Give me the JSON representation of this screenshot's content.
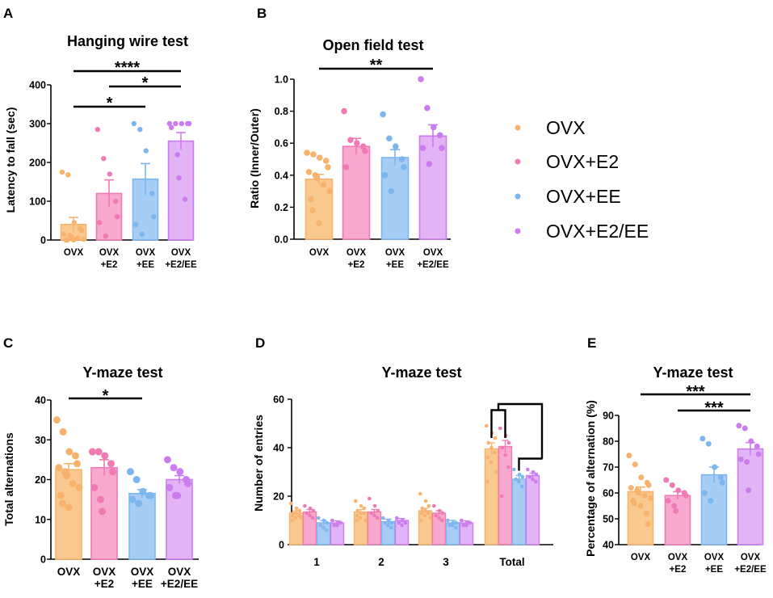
{
  "colors": {
    "OVX": "#F9C990",
    "OVX+E2": "#F7A9CF",
    "OVX+EE": "#A8CDF4",
    "OVX+E2/EE": "#E2B3F5",
    "OVX_dot": "#F7B36E",
    "OVX+E2_dot": "#F07BB4",
    "OVX+EE_dot": "#7DB6EE",
    "OVX+E2/EE_dot": "#CB7CEE"
  },
  "legend": [
    {
      "label": "OVX",
      "group": "OVX"
    },
    {
      "label": "OVX+E2",
      "group": "OVX+E2"
    },
    {
      "label": "OVX+EE",
      "group": "OVX+EE"
    },
    {
      "label": "OVX+E2/EE",
      "group": "OVX+E2/EE"
    }
  ],
  "chart_data": [
    {
      "panel": "A",
      "type": "bar",
      "title": "Hanging wire test",
      "ylabel": "Latency to fall (sec)",
      "ylim": [
        0,
        400
      ],
      "yticks": [
        0,
        100,
        200,
        300,
        400
      ],
      "categories": [
        [
          "OVX"
        ],
        [
          "OVX",
          "+E2"
        ],
        [
          "OVX",
          "+EE"
        ],
        [
          "OVX",
          "+E2/EE"
        ]
      ],
      "groups": [
        "OVX",
        "OVX+E2",
        "OVX+EE",
        "OVX+E2/EE"
      ],
      "values": [
        40,
        120,
        157,
        255
      ],
      "sem": [
        18,
        35,
        40,
        22
      ],
      "points": [
        [
          175,
          168,
          45,
          30,
          25,
          15,
          12,
          8,
          5,
          2,
          0,
          0,
          0
        ],
        [
          285,
          210,
          170,
          100,
          60,
          45,
          10
        ],
        [
          300,
          285,
          230,
          120,
          60,
          40,
          15
        ],
        [
          300,
          300,
          300,
          300,
          300,
          290,
          220,
          160,
          105
        ]
      ],
      "significance": [
        {
          "from": 0,
          "to": 3,
          "label": "****"
        },
        {
          "from": 1,
          "to": 3,
          "label": "*"
        },
        {
          "from": 0,
          "to": 2,
          "label": "*"
        }
      ]
    },
    {
      "panel": "B",
      "type": "bar",
      "title": "Open field test",
      "ylabel": "Ratio (Inner/Outer)",
      "ylim": [
        0,
        1.0
      ],
      "yticks": [
        "0.0",
        "0.2",
        "0.4",
        "0.6",
        "0.8",
        "1.0"
      ],
      "categories": [
        [
          "OVX"
        ],
        [
          "OVX",
          "+E2"
        ],
        [
          "OVX",
          "+EE"
        ],
        [
          "OVX",
          "+E2/EE"
        ]
      ],
      "groups": [
        "OVX",
        "OVX+E2",
        "OVX+EE",
        "OVX+E2/EE"
      ],
      "values": [
        0.375,
        0.58,
        0.51,
        0.645
      ],
      "sem": [
        0.03,
        0.05,
        0.05,
        0.07
      ],
      "points": [
        [
          0.54,
          0.53,
          0.51,
          0.49,
          0.45,
          0.42,
          0.4,
          0.38,
          0.34,
          0.3,
          0.25,
          0.18,
          0.1
        ],
        [
          0.8,
          0.62,
          0.6,
          0.58,
          0.55,
          0.45
        ],
        [
          0.78,
          0.63,
          0.58,
          0.5,
          0.45,
          0.4,
          0.3
        ],
        [
          1.0,
          0.82,
          0.7,
          0.65,
          0.57,
          0.57,
          0.47
        ]
      ],
      "significance": [
        {
          "from": 0,
          "to": 3,
          "label": "**"
        }
      ]
    },
    {
      "panel": "C",
      "type": "bar",
      "title": "Y-maze test",
      "ylabel": "Total alternations",
      "ylim": [
        0,
        40
      ],
      "yticks": [
        0,
        10,
        20,
        30,
        40
      ],
      "categories": [
        [
          "OVX"
        ],
        [
          "OVX",
          "+E2"
        ],
        [
          "OVX",
          "+EE"
        ],
        [
          "OVX",
          "+E2/EE"
        ]
      ],
      "groups": [
        "OVX",
        "OVX+E2",
        "OVX+EE",
        "OVX+E2/EE"
      ],
      "values": [
        22.5,
        23,
        16.5,
        20
      ],
      "sem": [
        1.5,
        2,
        1,
        1
      ],
      "points": [
        [
          35,
          32,
          27,
          26,
          24,
          23,
          22,
          21,
          19,
          18,
          16,
          14,
          13
        ],
        [
          27,
          27,
          26,
          24,
          22,
          18,
          15,
          12
        ],
        [
          22,
          20,
          17,
          16,
          16,
          15,
          14
        ],
        [
          25,
          23,
          22,
          20,
          19,
          18,
          16,
          16
        ]
      ],
      "significance": [
        {
          "from": 0,
          "to": 2,
          "label": "*"
        }
      ]
    },
    {
      "panel": "D",
      "type": "grouped-bar",
      "title": "Y-maze test",
      "ylabel": "Number of entries",
      "ylim": [
        0,
        60
      ],
      "yticks": [
        0,
        20,
        40,
        60
      ],
      "categories": [
        "1",
        "2",
        "3",
        "Total"
      ],
      "series": [
        {
          "name": "OVX",
          "values": [
            13,
            13.5,
            14,
            39.5
          ],
          "sem": [
            1,
            1,
            1,
            2.5
          ]
        },
        {
          "name": "OVX+E2",
          "values": [
            13.5,
            13.5,
            13,
            40.5
          ],
          "sem": [
            1,
            1,
            1,
            2.5
          ]
        },
        {
          "name": "OVX+EE",
          "values": [
            9,
            9.5,
            9,
            27
          ],
          "sem": [
            1,
            1,
            1,
            1.5
          ]
        },
        {
          "name": "OVX+E2/EE",
          "values": [
            9,
            10,
            9,
            28.5
          ],
          "sem": [
            0.8,
            0.8,
            0.8,
            1
          ]
        }
      ],
      "points": [
        [
          [
            17,
            15,
            14,
            13,
            13,
            12,
            12,
            11,
            11,
            10
          ],
          [
            18,
            16,
            15,
            14,
            13,
            13,
            12,
            11,
            10,
            10
          ],
          [
            21,
            18,
            16,
            15,
            14,
            13,
            13,
            12,
            11,
            10
          ],
          [
            49,
            46,
            44,
            42,
            40,
            38,
            36,
            34,
            30,
            26
          ]
        ],
        [
          [
            16,
            15,
            14,
            13,
            12,
            11
          ],
          [
            19,
            16,
            14,
            13,
            12,
            11
          ],
          [
            16,
            14,
            13,
            12,
            11,
            10
          ],
          [
            48,
            45,
            42,
            40,
            37,
            32,
            20
          ]
        ],
        [
          [
            11,
            10,
            9,
            8,
            7,
            6
          ],
          [
            11,
            10,
            9,
            9,
            8,
            7
          ],
          [
            10,
            9,
            9,
            8,
            8,
            7
          ],
          [
            31,
            29,
            28,
            27,
            26,
            24
          ]
        ],
        [
          [
            10,
            9,
            9,
            8,
            8
          ],
          [
            11,
            10,
            9,
            9,
            8
          ],
          [
            10,
            9,
            9,
            8,
            8
          ],
          [
            31,
            30,
            29,
            28,
            27,
            26
          ]
        ]
      ],
      "bracket": {
        "upper_groups": [
          "OVX",
          "OVX+E2"
        ],
        "lower_groups": [
          "OVX+EE",
          "OVX+E2/EE"
        ],
        "category": "Total"
      }
    },
    {
      "panel": "E",
      "type": "bar",
      "title": "Y-maze test",
      "ylabel": "Percentage of alternation (%)",
      "ylim": [
        40,
        90
      ],
      "yticks": [
        40,
        50,
        60,
        70,
        80,
        90
      ],
      "categories": [
        [
          "OVX"
        ],
        [
          "OVX",
          "+E2"
        ],
        [
          "OVX",
          "+EE"
        ],
        [
          "OVX",
          "+E2/EE"
        ]
      ],
      "groups": [
        "OVX",
        "OVX+E2",
        "OVX+EE",
        "OVX+E2/EE"
      ],
      "values": [
        60.5,
        59,
        67,
        77
      ],
      "sem": [
        1.8,
        1.5,
        3,
        2.5
      ],
      "points": [
        [
          74.5,
          71,
          66,
          64,
          63,
          62,
          61,
          60,
          59,
          58,
          57,
          56,
          55,
          52,
          48
        ],
        [
          65,
          63,
          61,
          60,
          59,
          57,
          55,
          53
        ],
        [
          81,
          79,
          70,
          66,
          64,
          60,
          57
        ],
        [
          86,
          85,
          80,
          78,
          75,
          73,
          72,
          61
        ]
      ],
      "significance": [
        {
          "from": 0,
          "to": 3,
          "label": "***"
        },
        {
          "from": 1,
          "to": 3,
          "label": "***"
        }
      ]
    }
  ]
}
